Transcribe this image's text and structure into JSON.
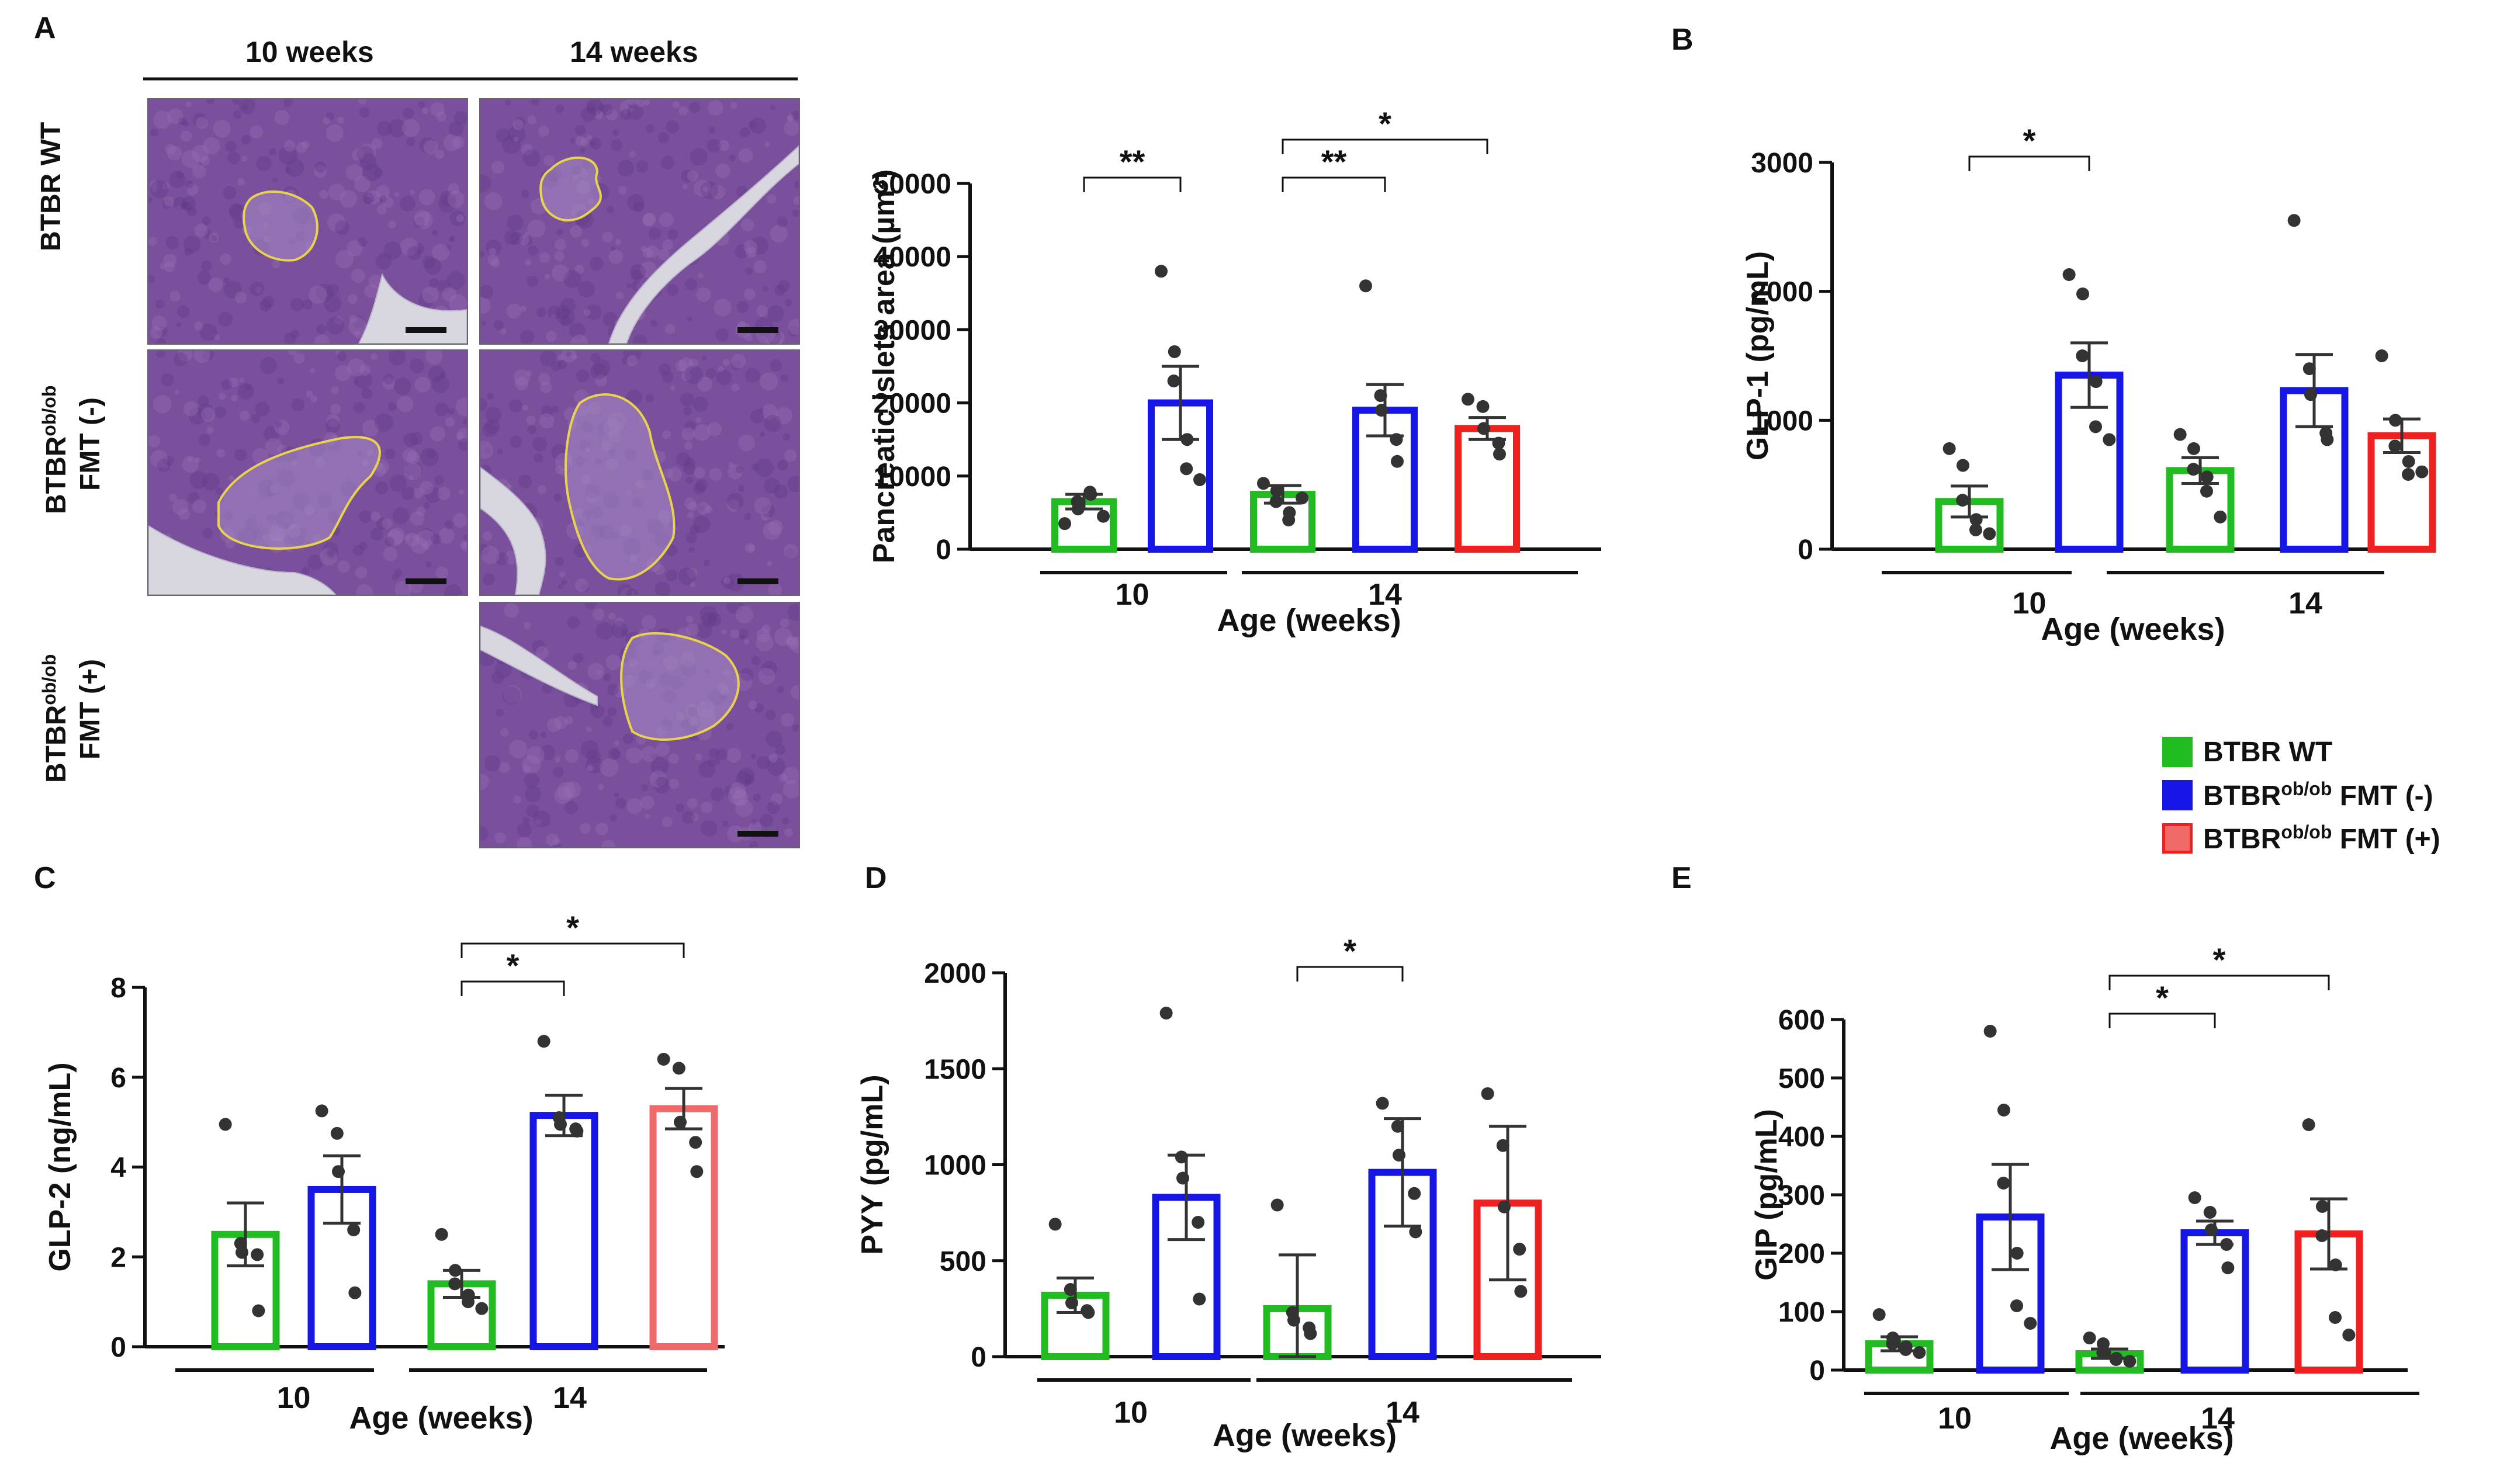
{
  "figure": {
    "micro_panel": {
      "letter": "A",
      "col_headers": [
        "10 weeks",
        "14 weeks"
      ],
      "row_labels": [
        {
          "main": "BTBR WT",
          "sup": "",
          "line2": ""
        },
        {
          "main": "BTBR",
          "sup": "ob/ob",
          "line2": "FMT (-)"
        },
        {
          "main": "BTBR",
          "sup": "ob/ob",
          "line2": "FMT (+)"
        }
      ]
    },
    "colors": {
      "wt": "#22bb22",
      "fmt_minus": "#1515e6",
      "fmt_plus": "#ee2020",
      "fmt_plus_light": "#f06a6a",
      "error_bar": "#333333",
      "dots": "#333333",
      "islet_outline": "#e8d44a",
      "tissue": "#7a4f9c"
    },
    "legend": [
      {
        "main": "BTBR WT",
        "sup": "",
        "tail": "",
        "color": "#22bb22"
      },
      {
        "main": "BTBR",
        "sup": "ob/ob",
        "tail": " FMT (-)",
        "color": "#1515e6"
      },
      {
        "main": "BTBR",
        "sup": "ob/ob",
        "tail": " FMT (+)",
        "color": "#ee2020"
      }
    ]
  },
  "chart_data": [
    {
      "id": "A-islets",
      "letter": "",
      "type": "bar",
      "ylabel": "Pancreatic islets area  (µm²)",
      "xlabel": "Age (weeks)",
      "ylim": [
        0,
        50000
      ],
      "yticks": [
        0,
        10000,
        20000,
        30000,
        40000,
        50000
      ],
      "groups": [
        {
          "label": "10",
          "bars": [
            0,
            1
          ]
        },
        {
          "label": "14",
          "bars": [
            2,
            3,
            4
          ]
        }
      ],
      "bars": [
        {
          "series": "BTBR WT",
          "age": "10",
          "mean": 6500,
          "sem": 1000,
          "points": [
            3500,
            5500,
            6500,
            7500,
            7800,
            4500
          ]
        },
        {
          "series": "BTBR ob/ob FMT (-)",
          "age": "10",
          "mean": 20000,
          "sem": 5000,
          "points": [
            38000,
            27000,
            23000,
            15000,
            11000,
            9500
          ]
        },
        {
          "series": "BTBR WT",
          "age": "14",
          "mean": 7500,
          "sem": 1200,
          "points": [
            9000,
            8000,
            6500,
            5000,
            4000,
            7000
          ]
        },
        {
          "series": "BTBR ob/ob FMT (-)",
          "age": "14",
          "mean": 19000,
          "sem": 3500,
          "points": [
            36000,
            21000,
            19000,
            15000,
            12000
          ]
        },
        {
          "series": "BTBR ob/ob FMT (+)",
          "age": "14",
          "mean": 16500,
          "sem": 1500,
          "points": [
            20500,
            19500,
            16500,
            14500,
            13000
          ]
        }
      ],
      "significance": [
        {
          "from": 0,
          "to": 1,
          "label": "**",
          "level": 0
        },
        {
          "from": 2,
          "to": 3,
          "label": "**",
          "level": 0
        },
        {
          "from": 2,
          "to": 4,
          "label": "*",
          "level": 1
        }
      ]
    },
    {
      "id": "B-glp1",
      "letter": "B",
      "type": "bar",
      "ylabel": "GLP-1 (pg/mL)",
      "xlabel": "Age (weeks)",
      "ylim": [
        0,
        3000
      ],
      "yticks": [
        0,
        1000,
        2000,
        3000
      ],
      "groups": [
        {
          "label": "10",
          "bars": [
            0,
            1
          ]
        },
        {
          "label": "14",
          "bars": [
            2,
            3,
            4
          ]
        }
      ],
      "bars": [
        {
          "series": "BTBR WT",
          "age": "10",
          "mean": 370,
          "sem": 120,
          "points": [
            780,
            650,
            380,
            230,
            150,
            120
          ]
        },
        {
          "series": "BTBR ob/ob FMT (-)",
          "age": "10",
          "mean": 1350,
          "sem": 250,
          "points": [
            2130,
            1980,
            1500,
            1300,
            950,
            850
          ]
        },
        {
          "series": "BTBR WT",
          "age": "14",
          "mean": 610,
          "sem": 100,
          "points": [
            890,
            780,
            620,
            560,
            450,
            250
          ]
        },
        {
          "series": "BTBR ob/ob FMT (-)",
          "age": "14",
          "mean": 1230,
          "sem": 280,
          "points": [
            2550,
            1400,
            1200,
            900,
            850
          ]
        },
        {
          "series": "BTBR ob/ob FMT (+)",
          "age": "14",
          "mean": 880,
          "sem": 130,
          "points": [
            1500,
            1000,
            800,
            680,
            580,
            600
          ]
        }
      ],
      "significance": [
        {
          "from": 0,
          "to": 1,
          "label": "*",
          "level": 0
        }
      ]
    },
    {
      "id": "C-glp2",
      "letter": "C",
      "type": "bar",
      "ylabel": "GLP-2 (ng/mL)",
      "xlabel": "Age (weeks)",
      "ylim": [
        0,
        8
      ],
      "yticks": [
        0,
        2,
        4,
        6,
        8
      ],
      "groups": [
        {
          "label": "10",
          "bars": [
            0,
            1
          ]
        },
        {
          "label": "14",
          "bars": [
            2,
            3,
            4
          ]
        }
      ],
      "bars": [
        {
          "series": "BTBR WT",
          "age": "10",
          "mean": 2.5,
          "sem": 0.7,
          "points": [
            4.95,
            2.3,
            2.1,
            2.05,
            0.8
          ]
        },
        {
          "series": "BTBR ob/ob FMT (-)",
          "age": "10",
          "mean": 3.5,
          "sem": 0.75,
          "points": [
            5.25,
            4.75,
            3.9,
            2.6,
            1.2
          ]
        },
        {
          "series": "BTBR WT",
          "age": "14",
          "mean": 1.4,
          "sem": 0.3,
          "points": [
            2.5,
            1.7,
            1.4,
            1.15,
            1.0,
            0.85
          ]
        },
        {
          "series": "BTBR ob/ob FMT (-)",
          "age": "14",
          "mean": 5.15,
          "sem": 0.45,
          "points": [
            6.8,
            5.1,
            4.95,
            4.85,
            4.8
          ]
        },
        {
          "series": "BTBR ob/ob FMT (+)",
          "age": "14",
          "mean": 5.3,
          "sem": 0.45,
          "points": [
            6.4,
            6.2,
            5.0,
            4.55,
            3.9
          ]
        }
      ],
      "significance": [
        {
          "from": 2,
          "to": 3,
          "label": "*",
          "level": 0
        },
        {
          "from": 2,
          "to": 4,
          "label": "*",
          "level": 1
        }
      ]
    },
    {
      "id": "D-pyy",
      "letter": "D",
      "type": "bar",
      "ylabel": "PYY (pg/mL)",
      "xlabel": "Age (weeks)",
      "ylim": [
        0,
        2000
      ],
      "yticks": [
        0,
        500,
        1000,
        1500,
        2000
      ],
      "groups": [
        {
          "label": "10",
          "bars": [
            0,
            1
          ]
        },
        {
          "label": "14",
          "bars": [
            2,
            3,
            4
          ]
        }
      ],
      "bars": [
        {
          "series": "BTBR WT",
          "age": "10",
          "mean": 320,
          "sem": 90,
          "points": [
            690,
            350,
            280,
            240,
            230
          ]
        },
        {
          "series": "BTBR ob/ob FMT (-)",
          "age": "10",
          "mean": 830,
          "sem": 220,
          "points": [
            1790,
            1040,
            930,
            700,
            300
          ]
        },
        {
          "series": "BTBR WT",
          "age": "14",
          "mean": 250,
          "sem": 280,
          "points": [
            790,
            230,
            190,
            150,
            120
          ]
        },
        {
          "series": "BTBR ob/ob FMT (-)",
          "age": "14",
          "mean": 960,
          "sem": 280,
          "points": [
            1320,
            1200,
            1050,
            850,
            650
          ]
        },
        {
          "series": "BTBR ob/ob FMT (+)",
          "age": "14",
          "mean": 800,
          "sem": 400,
          "points": [
            1370,
            1100,
            780,
            560,
            340
          ]
        }
      ],
      "significance": [
        {
          "from": 2,
          "to": 3,
          "label": "*",
          "level": 0
        }
      ]
    },
    {
      "id": "E-gip",
      "letter": "E",
      "type": "bar",
      "ylabel": "GIP (pg/mL)",
      "xlabel": "Age (weeks)",
      "ylim": [
        0,
        600
      ],
      "yticks": [
        0,
        100,
        200,
        300,
        400,
        500,
        600
      ],
      "groups": [
        {
          "label": "10",
          "bars": [
            0,
            1
          ]
        },
        {
          "label": "14",
          "bars": [
            2,
            3,
            4
          ]
        }
      ],
      "bars": [
        {
          "series": "BTBR WT",
          "age": "10",
          "mean": 45,
          "sem": 12,
          "points": [
            95,
            55,
            45,
            40,
            35,
            30
          ]
        },
        {
          "series": "BTBR ob/ob FMT (-)",
          "age": "10",
          "mean": 262,
          "sem": 90,
          "points": [
            580,
            445,
            320,
            200,
            110,
            80
          ]
        },
        {
          "series": "BTBR WT",
          "age": "14",
          "mean": 28,
          "sem": 8,
          "points": [
            55,
            45,
            30,
            20,
            18,
            15
          ]
        },
        {
          "series": "BTBR ob/ob FMT (-)",
          "age": "14",
          "mean": 235,
          "sem": 20,
          "points": [
            295,
            270,
            240,
            215,
            175
          ]
        },
        {
          "series": "BTBR ob/ob FMT (+)",
          "age": "14",
          "mean": 233,
          "sem": 60,
          "points": [
            420,
            280,
            230,
            180,
            90,
            60
          ]
        }
      ],
      "significance": [
        {
          "from": 2,
          "to": 3,
          "label": "*",
          "level": 0
        },
        {
          "from": 2,
          "to": 4,
          "label": "*",
          "level": 1
        }
      ]
    }
  ]
}
